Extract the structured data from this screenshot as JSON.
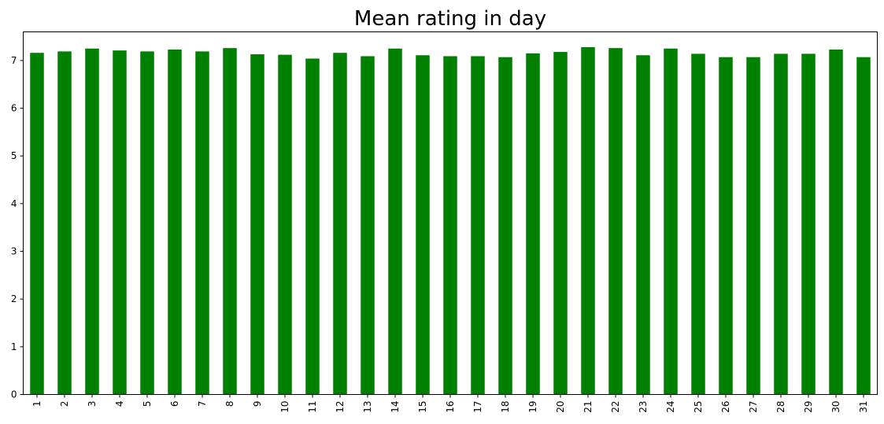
{
  "chart_data": {
    "type": "bar",
    "title": "Mean rating in day",
    "xlabel": "",
    "ylabel": "",
    "categories": [
      "1",
      "2",
      "3",
      "4",
      "5",
      "6",
      "7",
      "8",
      "9",
      "10",
      "11",
      "12",
      "13",
      "14",
      "15",
      "16",
      "17",
      "18",
      "19",
      "20",
      "21",
      "22",
      "23",
      "24",
      "25",
      "26",
      "27",
      "28",
      "29",
      "30",
      "31"
    ],
    "values": [
      7.16,
      7.19,
      7.25,
      7.21,
      7.19,
      7.23,
      7.19,
      7.26,
      7.13,
      7.12,
      7.04,
      7.16,
      7.09,
      7.25,
      7.11,
      7.09,
      7.09,
      7.07,
      7.15,
      7.18,
      7.28,
      7.26,
      7.11,
      7.25,
      7.14,
      7.07,
      7.07,
      7.14,
      7.14,
      7.23,
      7.07
    ],
    "ylim": [
      0,
      7.6
    ],
    "yticks": [
      "0",
      "1",
      "2",
      "3",
      "4",
      "5",
      "6",
      "7"
    ],
    "bar_color": "#008000",
    "grid": false,
    "legend": "none"
  }
}
